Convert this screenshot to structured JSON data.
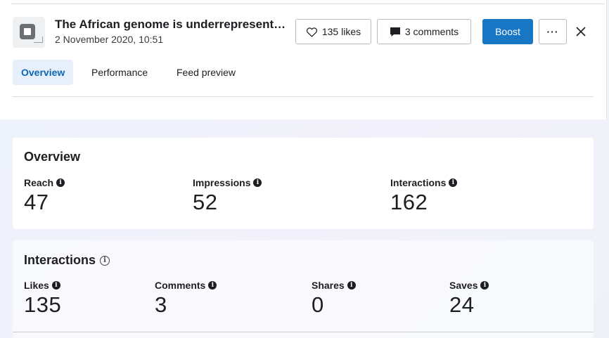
{
  "post": {
    "title": "The African genome is underrepresented in studies",
    "date": "2 November 2020, 10:51"
  },
  "header_actions": {
    "likes_label": "135 likes",
    "comments_label": "3 comments",
    "boost_label": "Boost",
    "more_label": "···"
  },
  "icons": {
    "likes": "heart-icon",
    "comments": "comment-bubble-icon",
    "close": "close-icon",
    "info": "info-icon"
  },
  "colors": {
    "accent": "#1877c5",
    "active_tab_bg": "#e7f0fa",
    "active_tab_text": "#0a66b7"
  },
  "tabs": [
    {
      "label": "Overview",
      "active": true
    },
    {
      "label": "Performance",
      "active": false
    },
    {
      "label": "Feed preview",
      "active": false
    }
  ],
  "overview": {
    "title": "Overview",
    "metrics": [
      {
        "label": "Reach",
        "value": "47"
      },
      {
        "label": "Impressions",
        "value": "52"
      },
      {
        "label": "Interactions",
        "value": "162"
      }
    ]
  },
  "interactions": {
    "title": "Interactions",
    "metrics": [
      {
        "label": "Likes",
        "value": "135"
      },
      {
        "label": "Comments",
        "value": "3"
      },
      {
        "label": "Shares",
        "value": "0"
      },
      {
        "label": "Saves",
        "value": "24"
      }
    ]
  }
}
